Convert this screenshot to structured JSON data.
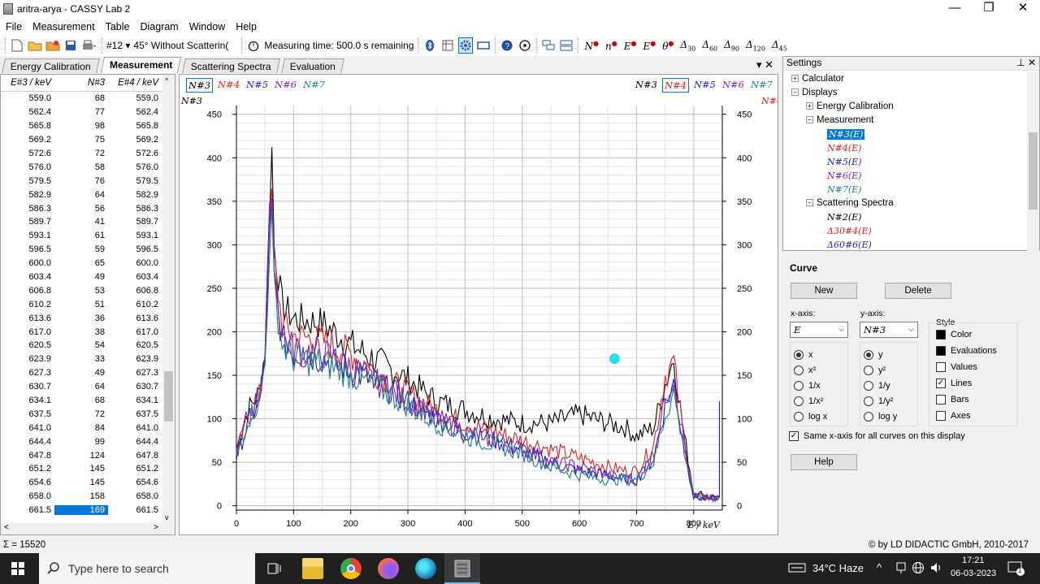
{
  "window": {
    "title": "aritra-arya - CASSY Lab 2",
    "minimize": "—",
    "restore": "❐",
    "close": "✕"
  },
  "menu": [
    "File",
    "Measurement",
    "Table",
    "Diagram",
    "Window",
    "Help"
  ],
  "toolbar": {
    "meas_number": "#12 ▾",
    "meas_name": "45° Without Scatterin(",
    "timer_label": "Measuring time: 500.0 s remaining",
    "symbols": [
      "N",
      "n",
      "E",
      "E",
      "θ"
    ],
    "deltas": [
      [
        "Δ",
        "30"
      ],
      [
        "Δ",
        "60"
      ],
      [
        "Δ",
        "90"
      ],
      [
        "Δ",
        "120"
      ],
      [
        "Δ",
        "45"
      ]
    ]
  },
  "tabs": [
    "Energy Calibration",
    "Measurement",
    "Scattering Spectra",
    "Evaluation"
  ],
  "tabs_ctrl": "▾ ✕",
  "table": {
    "headers": [
      "E#3 / keV",
      "N#3",
      "E#4 / keV"
    ],
    "rows": [
      [
        "559.0",
        "68",
        "559.0"
      ],
      [
        "562.4",
        "77",
        "562.4"
      ],
      [
        "565.8",
        "98",
        "565.8"
      ],
      [
        "569.2",
        "75",
        "569.2"
      ],
      [
        "572.6",
        "72",
        "572.6"
      ],
      [
        "576.0",
        "58",
        "576.0"
      ],
      [
        "579.5",
        "76",
        "579.5"
      ],
      [
        "582.9",
        "64",
        "582.9"
      ],
      [
        "586.3",
        "56",
        "586.3"
      ],
      [
        "589.7",
        "41",
        "589.7"
      ],
      [
        "593.1",
        "61",
        "593.1"
      ],
      [
        "596.5",
        "59",
        "596.5"
      ],
      [
        "600.0",
        "65",
        "600.0"
      ],
      [
        "603.4",
        "49",
        "603.4"
      ],
      [
        "606.8",
        "53",
        "606.8"
      ],
      [
        "610.2",
        "51",
        "610.2"
      ],
      [
        "613.6",
        "36",
        "613.6"
      ],
      [
        "617.0",
        "38",
        "617.0"
      ],
      [
        "620.5",
        "54",
        "620.5"
      ],
      [
        "623.9",
        "33",
        "623.9"
      ],
      [
        "627.3",
        "49",
        "627.3"
      ],
      [
        "630.7",
        "64",
        "630.7"
      ],
      [
        "634.1",
        "68",
        "634.1"
      ],
      [
        "637.5",
        "72",
        "637.5"
      ],
      [
        "641.0",
        "84",
        "641.0"
      ],
      [
        "644.4",
        "99",
        "644.4"
      ],
      [
        "647.8",
        "124",
        "647.8"
      ],
      [
        "651.2",
        "145",
        "651.2"
      ],
      [
        "654.6",
        "145",
        "654.6"
      ],
      [
        "658.0",
        "158",
        "658.0"
      ],
      [
        "661.5",
        "169",
        "661.5"
      ]
    ],
    "selected_row": 30,
    "scroll_left": "<",
    "scroll_right": ">",
    "scroll_up": "^",
    "scroll_down": "v"
  },
  "chart_series_left": [
    "N#3",
    "N#4",
    "N#5",
    "N#6",
    "N#7"
  ],
  "chart_series_right": [
    "N#3",
    "N#4",
    "N#5",
    "N#6",
    "N#7"
  ],
  "series_colors": [
    "#000000",
    "#e02020",
    "#2020d0",
    "#8020b0",
    "#208080"
  ],
  "chart_data": {
    "type": "line",
    "xlabel": "E / keV",
    "ylabel_left": "N#3",
    "ylabel_right": "N#4",
    "xlim": [
      0,
      850
    ],
    "ylim": [
      -5,
      460
    ],
    "xticks": [
      "0",
      "100",
      "200",
      "300",
      "400",
      "500",
      "600",
      "700",
      "800"
    ],
    "yticks": [
      "0",
      "50",
      "100",
      "150",
      "200",
      "250",
      "300",
      "350",
      "400",
      "450"
    ],
    "grid": true,
    "series": [
      {
        "name": "N#3",
        "color": "#000000",
        "points": [
          [
            0,
            65
          ],
          [
            20,
            110
          ],
          [
            40,
            130
          ],
          [
            50,
            180
          ],
          [
            58,
            340
          ],
          [
            62,
            410
          ],
          [
            66,
            300
          ],
          [
            80,
            230
          ],
          [
            100,
            215
          ],
          [
            150,
            210
          ],
          [
            200,
            185
          ],
          [
            250,
            165
          ],
          [
            300,
            145
          ],
          [
            350,
            120
          ],
          [
            400,
            110
          ],
          [
            450,
            100
          ],
          [
            500,
            95
          ],
          [
            550,
            95
          ],
          [
            600,
            105
          ],
          [
            650,
            95
          ],
          [
            680,
            90
          ],
          [
            700,
            80
          ],
          [
            730,
            90
          ],
          [
            750,
            140
          ],
          [
            765,
            170
          ],
          [
            780,
            95
          ],
          [
            800,
            15
          ],
          [
            830,
            10
          ],
          [
            845,
            10
          ]
        ]
      },
      {
        "name": "N#4",
        "color": "#e02020",
        "points": [
          [
            0,
            60
          ],
          [
            20,
            100
          ],
          [
            40,
            125
          ],
          [
            50,
            175
          ],
          [
            58,
            320
          ],
          [
            62,
            360
          ],
          [
            66,
            280
          ],
          [
            80,
            210
          ],
          [
            100,
            195
          ],
          [
            150,
            190
          ],
          [
            200,
            175
          ],
          [
            250,
            150
          ],
          [
            300,
            130
          ],
          [
            350,
            110
          ],
          [
            400,
            95
          ],
          [
            450,
            85
          ],
          [
            500,
            75
          ],
          [
            550,
            65
          ],
          [
            600,
            55
          ],
          [
            650,
            45
          ],
          [
            680,
            40
          ],
          [
            700,
            40
          ],
          [
            730,
            70
          ],
          [
            750,
            150
          ],
          [
            765,
            165
          ],
          [
            780,
            90
          ],
          [
            800,
            12
          ],
          [
            830,
            8
          ],
          [
            845,
            10
          ]
        ]
      },
      {
        "name": "N#5",
        "color": "#2020d0",
        "points": [
          [
            0,
            55
          ],
          [
            20,
            95
          ],
          [
            40,
            120
          ],
          [
            50,
            170
          ],
          [
            58,
            310
          ],
          [
            62,
            340
          ],
          [
            66,
            260
          ],
          [
            80,
            190
          ],
          [
            100,
            175
          ],
          [
            150,
            170
          ],
          [
            200,
            155
          ],
          [
            250,
            140
          ],
          [
            300,
            120
          ],
          [
            350,
            100
          ],
          [
            400,
            85
          ],
          [
            450,
            75
          ],
          [
            500,
            65
          ],
          [
            550,
            50
          ],
          [
            600,
            40
          ],
          [
            650,
            35
          ],
          [
            680,
            30
          ],
          [
            700,
            30
          ],
          [
            730,
            55
          ],
          [
            750,
            115
          ],
          [
            765,
            140
          ],
          [
            780,
            80
          ],
          [
            800,
            10
          ],
          [
            830,
            8
          ],
          [
            845,
            10
          ]
        ]
      },
      {
        "name": "N#6",
        "color": "#8020b0",
        "points": [
          [
            0,
            60
          ],
          [
            20,
            105
          ],
          [
            40,
            125
          ],
          [
            50,
            175
          ],
          [
            58,
            330
          ],
          [
            62,
            370
          ],
          [
            66,
            275
          ],
          [
            80,
            195
          ],
          [
            100,
            180
          ],
          [
            150,
            175
          ],
          [
            200,
            160
          ],
          [
            250,
            140
          ],
          [
            300,
            120
          ],
          [
            350,
            100
          ],
          [
            400,
            85
          ],
          [
            450,
            75
          ],
          [
            500,
            65
          ],
          [
            550,
            50
          ],
          [
            600,
            45
          ],
          [
            650,
            35
          ],
          [
            680,
            30
          ],
          [
            700,
            30
          ],
          [
            730,
            60
          ],
          [
            750,
            125
          ],
          [
            765,
            150
          ],
          [
            780,
            85
          ],
          [
            800,
            10
          ],
          [
            830,
            8
          ],
          [
            845,
            10
          ]
        ]
      },
      {
        "name": "N#7",
        "color": "#208080",
        "points": [
          [
            0,
            55
          ],
          [
            20,
            100
          ],
          [
            40,
            120
          ],
          [
            50,
            165
          ],
          [
            58,
            300
          ],
          [
            62,
            330
          ],
          [
            66,
            250
          ],
          [
            80,
            185
          ],
          [
            100,
            170
          ],
          [
            150,
            165
          ],
          [
            200,
            150
          ],
          [
            250,
            135
          ],
          [
            300,
            115
          ],
          [
            350,
            95
          ],
          [
            400,
            80
          ],
          [
            450,
            70
          ],
          [
            500,
            60
          ],
          [
            550,
            45
          ],
          [
            600,
            35
          ],
          [
            650,
            30
          ],
          [
            680,
            30
          ],
          [
            700,
            30
          ],
          [
            730,
            50
          ],
          [
            750,
            105
          ],
          [
            765,
            130
          ],
          [
            780,
            75
          ],
          [
            800,
            10
          ],
          [
            830,
            8
          ],
          [
            845,
            10
          ]
        ]
      }
    ],
    "marker": {
      "x": 661.5,
      "y": 169,
      "color": "#27e0e8"
    }
  },
  "settings": {
    "title": "Settings",
    "ctrl": "⊥ ✕",
    "tree": [
      {
        "label": "Calculator",
        "level": 0,
        "exp": "+"
      },
      {
        "label": "Displays",
        "level": 0,
        "exp": "−"
      },
      {
        "label": "Energy Calibration",
        "level": 1,
        "exp": "+"
      },
      {
        "label": "Measurement",
        "level": 1,
        "exp": "−"
      },
      {
        "label": "N#3(E)",
        "level": 2,
        "color": "#ffffff",
        "selected": true
      },
      {
        "label": "N#4(E)",
        "level": 2,
        "color": "#e02020"
      },
      {
        "label": "N#5(E)",
        "level": 2,
        "color": "#2020d0"
      },
      {
        "label": "N#6(E)",
        "level": 2,
        "color": "#8020b0"
      },
      {
        "label": "N#7(E)",
        "level": 2,
        "color": "#208080"
      },
      {
        "label": "Scattering Spectra",
        "level": 1,
        "exp": "−"
      },
      {
        "label": "N#2(E)",
        "level": 2,
        "color": "#000000"
      },
      {
        "label": "Δ30#4(E)",
        "level": 2,
        "color": "#e02020"
      },
      {
        "label": "Δ60#6(E)",
        "level": 2,
        "color": "#2020d0"
      }
    ]
  },
  "curve": {
    "title": "Curve",
    "new_btn": "New",
    "delete_btn": "Delete",
    "xaxis_label": "x-axis:",
    "yaxis_label": "y-axis:",
    "xaxis_value": "E",
    "yaxis_value": "N#3",
    "x_opts": [
      "x",
      "x²",
      "1/x",
      "1/x²",
      "log x"
    ],
    "y_opts": [
      "y",
      "y²",
      "1/y",
      "1/y²",
      "log y"
    ],
    "style_label": "Style",
    "style_opts": [
      {
        "label": "Color",
        "state": "filled"
      },
      {
        "label": "Evaluations",
        "state": "filled"
      },
      {
        "label": "Values",
        "state": "off"
      },
      {
        "label": "Lines",
        "state": "on"
      },
      {
        "label": "Bars",
        "state": "off"
      },
      {
        "label": "Axes",
        "state": "off"
      }
    ],
    "same_x": "Same x-axis for all curves on this display",
    "help_btn": "Help"
  },
  "status": {
    "sum": "Σ = 15520",
    "copyright": "© by LD DIDACTIC GmbH, 2010-2017"
  },
  "taskbar": {
    "search_placeholder": "Type here to search",
    "weather": "34°C  Haze",
    "time": "17:21",
    "date": "06-03-2023",
    "notifications": "1"
  }
}
